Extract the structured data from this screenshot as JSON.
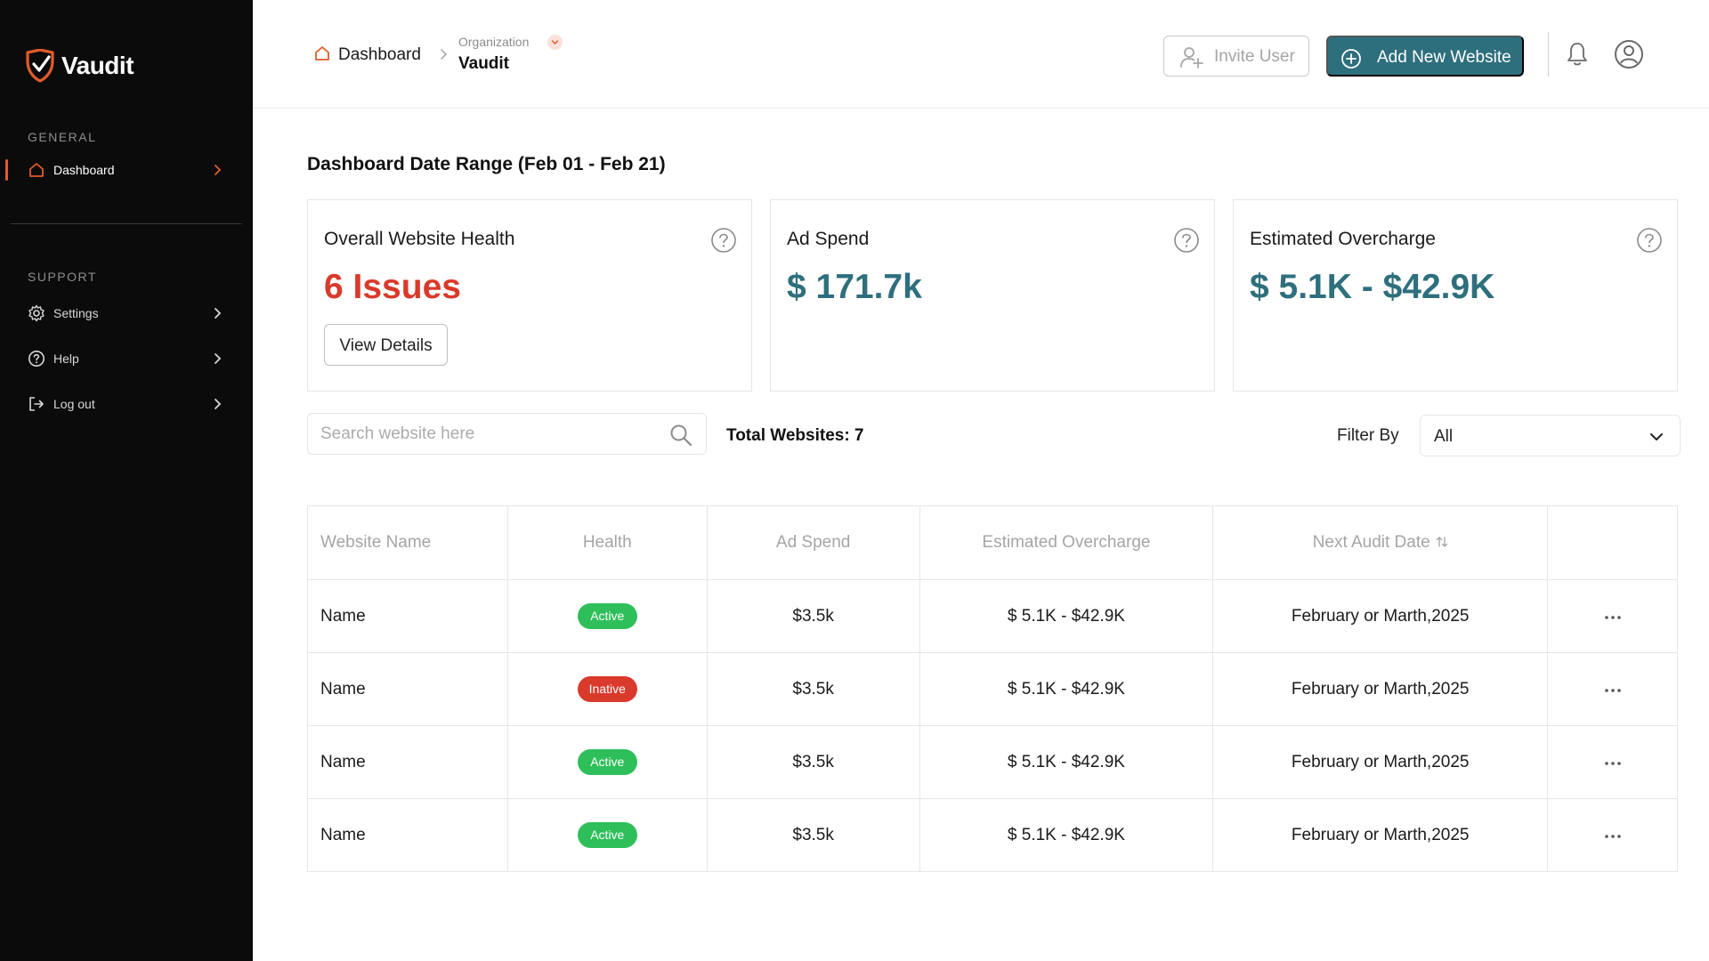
{
  "app": {
    "name": "Vaudit",
    "brand_color": "#e25b2b",
    "accent_color": "#2e6f7d"
  },
  "sidebar": {
    "general_label": "GENERAL",
    "support_label": "SUPPORT",
    "items": [
      {
        "label": "Dashboard",
        "icon": "home-icon",
        "active": true
      },
      {
        "label": "Settings",
        "icon": "gear-icon"
      },
      {
        "label": "Help",
        "icon": "help-circle-icon"
      },
      {
        "label": "Log out",
        "icon": "logout-icon"
      }
    ]
  },
  "header": {
    "breadcrumb_home": "Dashboard",
    "org_label": "Organization",
    "org_name": "Vaudit",
    "invite_label": "Invite User",
    "add_label": "Add New Website"
  },
  "main": {
    "range_title": "Dashboard Date Range (Feb 01 - Feb 21)",
    "cards": [
      {
        "title": "Overall Website Health",
        "value": "6 Issues",
        "button": "View Details"
      },
      {
        "title": "Ad Spend",
        "value": "$ 171.7k"
      },
      {
        "title": "Estimated Overcharge",
        "value": "$ 5.1K - $42.9K"
      }
    ],
    "search_placeholder": "Search website here",
    "total_label": "Total Websites: 7",
    "filter_label": "Filter By",
    "filter_value": "All"
  },
  "table": {
    "headers": [
      "Website Name",
      "Health",
      "Ad Spend",
      "Estimated Overcharge",
      "Next Audit Date"
    ],
    "rows": [
      {
        "name": "Name",
        "health": "Active",
        "spend": "$3.5k",
        "overcharge": "$ 5.1K - $42.9K",
        "date": "February or Marth,2025"
      },
      {
        "name": "Name",
        "health": "Inative",
        "spend": "$3.5k",
        "overcharge": "$ 5.1K - $42.9K",
        "date": "February or Marth,2025"
      },
      {
        "name": "Name",
        "health": "Active",
        "spend": "$3.5k",
        "overcharge": "$ 5.1K - $42.9K",
        "date": "February or Marth,2025"
      },
      {
        "name": "Name",
        "health": "Active",
        "spend": "$3.5k",
        "overcharge": "$ 5.1K - $42.9K",
        "date": "February or Marth,2025"
      }
    ]
  }
}
